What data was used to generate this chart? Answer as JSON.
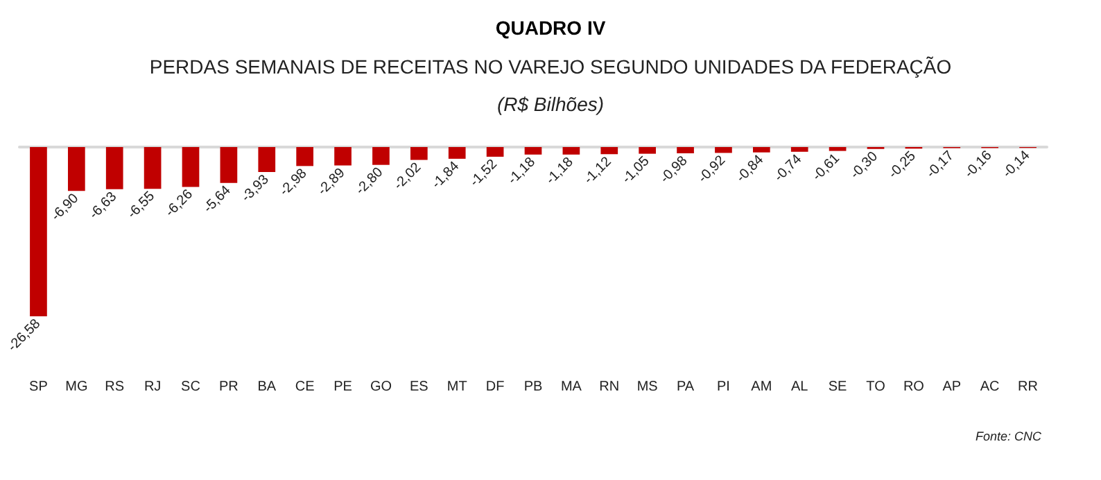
{
  "chart_data": {
    "type": "bar",
    "title": "QUADRO IV",
    "subtitle": "PERDAS SEMANAIS DE RECEITAS NO VAREJO SEGUNDO UNIDADES DA FEDERAÇÃO",
    "ylabel": "(R$ Bilhões)",
    "annotations": [
      "Fonte: CNC"
    ],
    "categories": [
      "SP",
      "MG",
      "RS",
      "RJ",
      "SC",
      "PR",
      "BA",
      "CE",
      "PE",
      "GO",
      "ES",
      "MT",
      "DF",
      "PB",
      "MA",
      "RN",
      "MS",
      "PA",
      "PI",
      "AM",
      "AL",
      "SE",
      "TO",
      "RO",
      "AP",
      "AC",
      "RR"
    ],
    "values": [
      -26.58,
      -6.9,
      -6.63,
      -6.55,
      -6.26,
      -5.64,
      -3.93,
      -2.98,
      -2.89,
      -2.8,
      -2.02,
      -1.84,
      -1.52,
      -1.18,
      -1.18,
      -1.12,
      -1.05,
      -0.98,
      -0.92,
      -0.84,
      -0.74,
      -0.61,
      -0.3,
      -0.25,
      -0.17,
      -0.16,
      -0.14
    ],
    "value_labels": [
      "-26,58",
      "-6,90",
      "-6,63",
      "-6,55",
      "-6,26",
      "-5,64",
      "-3,93",
      "-2,98",
      "-2,89",
      "-2,80",
      "-2,02",
      "-1,84",
      "-1,52",
      "-1,18",
      "-1,18",
      "-1,12",
      "-1,05",
      "-0,98",
      "-0,92",
      "-0,84",
      "-0,74",
      "-0,61",
      "-0,30",
      "-0,25",
      "-0,17",
      "-0,16",
      "-0,14"
    ],
    "color": "#c00000"
  }
}
